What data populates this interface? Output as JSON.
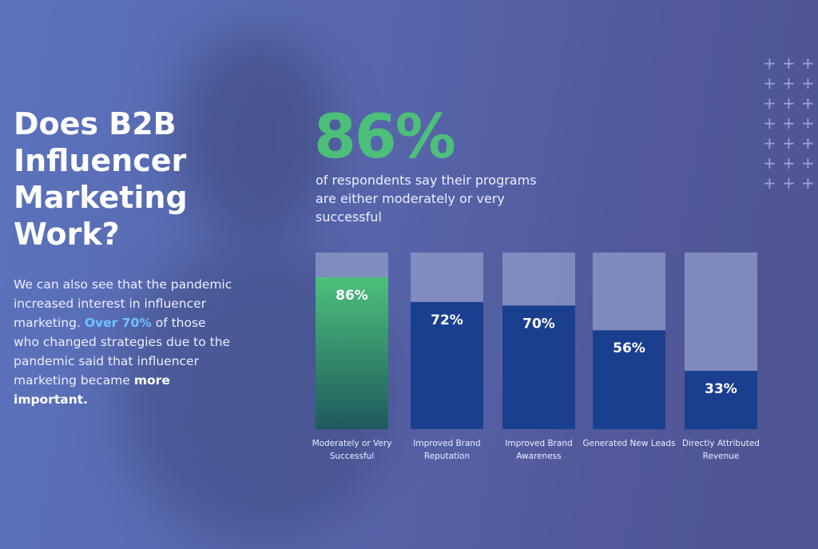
{
  "title_lines": [
    "Does B2B",
    "Influencer",
    "Marketing",
    "Work?"
  ],
  "description": {
    "part1": "We can also see that the pandemic increased interest in influencer marketing. ",
    "highlight": "Over 70%",
    "part2": " of those who changed strategies due to the pandemic said that influencer marketing became ",
    "bold": "more important."
  },
  "headline_stat": "86%",
  "headline_text": "of respondents say their programs are either moderately or very successful",
  "decoration_icon": "plus-grid-icon",
  "chart_data": {
    "type": "bar",
    "categories": [
      "Moderately or Very Successful",
      "Improved Brand Reputation",
      "Improved Brand Awareness",
      "Generated New Leads",
      "Directly Attributed Revenue"
    ],
    "values": [
      86,
      72,
      70,
      56,
      33
    ],
    "data_labels": [
      "86%",
      "72%",
      "70%",
      "56%",
      "33%"
    ],
    "ylim": [
      0,
      100
    ],
    "grid": false,
    "colors": {
      "highlight_top": "#4cc07a",
      "highlight_bottom": "#1e5a5e",
      "bar": "#1b3f8f",
      "track": "#8a93c3"
    }
  }
}
